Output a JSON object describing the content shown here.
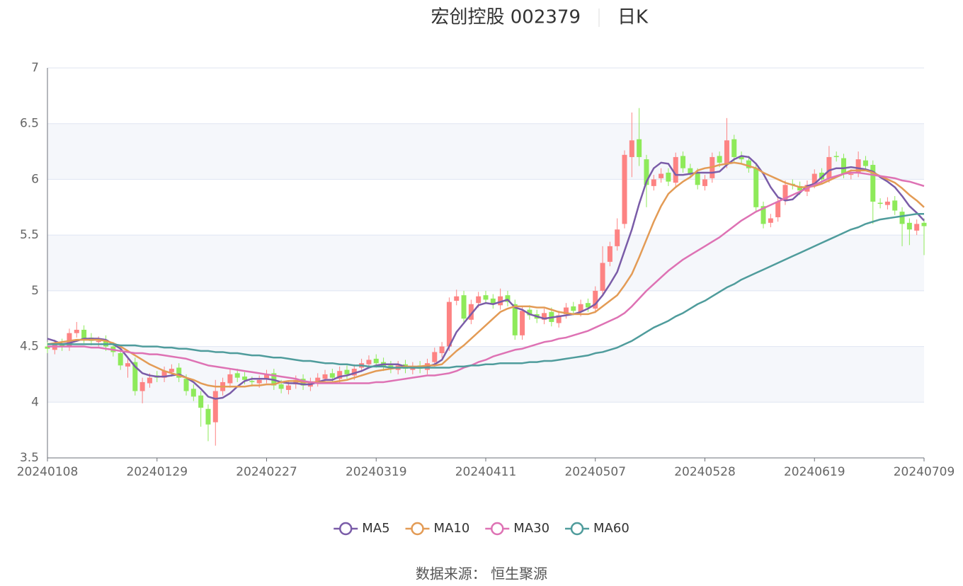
{
  "chart_data": {
    "type": "candlestick",
    "title": "宏创控股 002379",
    "subtitle": "日K",
    "source": "数据来源：  恒生聚源",
    "categories": [
      "20240108",
      null,
      null,
      null,
      null,
      null,
      null,
      null,
      null,
      null,
      null,
      null,
      null,
      null,
      null,
      "20240129",
      null,
      null,
      null,
      null,
      null,
      null,
      null,
      null,
      null,
      null,
      null,
      null,
      null,
      null,
      "20240227",
      null,
      null,
      null,
      null,
      null,
      null,
      null,
      null,
      null,
      null,
      null,
      null,
      null,
      null,
      "20240319",
      null,
      null,
      null,
      null,
      null,
      null,
      null,
      null,
      null,
      null,
      null,
      null,
      null,
      null,
      "20240411",
      null,
      null,
      null,
      null,
      null,
      null,
      null,
      null,
      null,
      null,
      null,
      null,
      null,
      null,
      "20240507",
      null,
      null,
      null,
      null,
      null,
      null,
      null,
      null,
      null,
      null,
      null,
      null,
      null,
      null,
      "20240528",
      null,
      null,
      null,
      null,
      null,
      null,
      null,
      null,
      null,
      null,
      null,
      null,
      null,
      null,
      "20240619",
      null,
      null,
      null,
      null,
      null,
      null,
      null,
      null,
      null,
      null,
      null,
      null,
      null,
      null,
      "20240709"
    ],
    "open": [
      4.5,
      4.47,
      4.53,
      4.5,
      4.62,
      4.65,
      4.58,
      4.54,
      4.56,
      4.5,
      4.44,
      4.32,
      4.36,
      4.1,
      4.17,
      4.24,
      4.22,
      4.27,
      4.31,
      4.21,
      4.12,
      4.06,
      3.94,
      3.82,
      4.1,
      4.17,
      4.26,
      4.23,
      4.19,
      4.17,
      4.21,
      4.26,
      4.16,
      4.11,
      4.16,
      4.21,
      4.14,
      4.18,
      4.21,
      4.26,
      4.21,
      4.29,
      4.24,
      4.31,
      4.34,
      4.39,
      4.36,
      4.33,
      4.29,
      4.34,
      4.29,
      4.33,
      4.29,
      4.36,
      4.44,
      4.5,
      4.91,
      4.96,
      4.74,
      4.89,
      4.96,
      4.93,
      4.87,
      4.96,
      4.88,
      4.6,
      4.83,
      4.79,
      4.74,
      4.81,
      4.71,
      4.79,
      4.86,
      4.81,
      4.89,
      4.84,
      5.0,
      5.26,
      5.4,
      5.6,
      6.2,
      6.36,
      6.18,
      5.94,
      6.01,
      6.06,
      5.97,
      6.21,
      6.1,
      6.06,
      5.94,
      6.01,
      6.21,
      6.14,
      6.36,
      6.21,
      6.17,
      6.1,
      5.76,
      5.61,
      5.66,
      5.81,
      5.96,
      5.94,
      5.89,
      5.96,
      6.06,
      6.01,
      6.21,
      6.19,
      6.04,
      6.06,
      6.17,
      6.13,
      5.79,
      5.77,
      5.81,
      5.71,
      5.61,
      5.54,
      5.61
    ],
    "close": [
      4.48,
      4.52,
      4.5,
      4.62,
      4.65,
      4.57,
      4.55,
      4.55,
      4.5,
      4.45,
      4.33,
      4.35,
      4.1,
      4.18,
      4.22,
      4.22,
      4.28,
      4.3,
      4.22,
      4.1,
      4.05,
      3.95,
      3.8,
      4.1,
      4.18,
      4.25,
      4.22,
      4.2,
      4.18,
      4.2,
      4.25,
      4.15,
      4.12,
      4.15,
      4.2,
      4.15,
      4.18,
      4.22,
      4.25,
      4.22,
      4.28,
      4.25,
      4.3,
      4.35,
      4.38,
      4.35,
      4.32,
      4.3,
      4.33,
      4.3,
      4.32,
      4.3,
      4.35,
      4.45,
      4.5,
      4.9,
      4.95,
      4.75,
      4.88,
      4.95,
      4.92,
      4.88,
      4.95,
      4.9,
      4.6,
      4.82,
      4.78,
      4.75,
      4.8,
      4.72,
      4.78,
      4.85,
      4.82,
      4.88,
      4.85,
      5.0,
      5.25,
      5.4,
      5.55,
      6.22,
      6.35,
      6.2,
      5.95,
      6.0,
      6.05,
      5.98,
      6.2,
      6.1,
      6.05,
      5.95,
      6.0,
      6.2,
      6.15,
      6.35,
      6.2,
      6.18,
      6.1,
      5.75,
      5.6,
      5.65,
      5.8,
      5.95,
      5.95,
      5.9,
      5.95,
      6.05,
      6.0,
      6.2,
      6.2,
      6.05,
      6.05,
      6.18,
      6.12,
      5.8,
      5.78,
      5.8,
      5.72,
      5.6,
      5.55,
      5.6,
      5.58
    ],
    "low": [
      4.44,
      4.43,
      4.46,
      4.46,
      4.58,
      4.53,
      4.51,
      4.5,
      4.46,
      4.41,
      4.29,
      4.22,
      4.06,
      3.99,
      4.13,
      4.18,
      4.18,
      4.23,
      4.18,
      4.06,
      4.01,
      3.78,
      3.65,
      3.61,
      4.06,
      4.13,
      4.18,
      4.16,
      4.14,
      4.13,
      4.17,
      4.11,
      4.08,
      4.07,
      4.12,
      4.11,
      4.1,
      4.14,
      4.17,
      4.18,
      4.17,
      4.21,
      4.2,
      4.27,
      4.3,
      4.31,
      4.28,
      4.26,
      4.25,
      4.26,
      4.25,
      4.26,
      4.25,
      4.32,
      4.4,
      4.46,
      4.87,
      4.71,
      4.7,
      4.85,
      4.88,
      4.84,
      4.83,
      4.86,
      4.56,
      4.56,
      4.74,
      4.71,
      4.7,
      4.68,
      4.67,
      4.75,
      4.78,
      4.77,
      4.81,
      4.8,
      4.96,
      5.22,
      5.36,
      5.56,
      6.02,
      6.12,
      5.75,
      5.9,
      5.97,
      5.94,
      5.93,
      6.06,
      6.01,
      5.91,
      5.9,
      5.97,
      6.11,
      6.1,
      6.16,
      6.14,
      6.06,
      5.71,
      5.56,
      5.57,
      5.62,
      5.77,
      5.91,
      5.86,
      5.85,
      5.92,
      5.96,
      5.97,
      6.16,
      6.01,
      6.0,
      6.02,
      6.08,
      5.6,
      5.74,
      5.73,
      5.68,
      5.4,
      5.41,
      5.5,
      5.32
    ],
    "high": [
      4.54,
      4.56,
      4.57,
      4.66,
      4.72,
      4.69,
      4.62,
      4.59,
      4.6,
      4.54,
      4.48,
      4.39,
      4.4,
      4.22,
      4.26,
      4.28,
      4.32,
      4.34,
      4.35,
      4.25,
      4.16,
      4.1,
      3.98,
      4.2,
      4.22,
      4.3,
      4.3,
      4.27,
      4.23,
      4.24,
      4.29,
      4.3,
      4.2,
      4.19,
      4.24,
      4.25,
      4.22,
      4.26,
      4.29,
      4.3,
      4.32,
      4.33,
      4.34,
      4.39,
      4.42,
      4.43,
      4.4,
      4.37,
      4.37,
      4.38,
      4.36,
      4.37,
      4.39,
      4.49,
      4.54,
      4.94,
      5.01,
      5.0,
      4.92,
      4.99,
      5.0,
      4.97,
      5.02,
      5.0,
      4.92,
      4.86,
      4.87,
      4.83,
      4.84,
      4.85,
      4.82,
      4.89,
      4.9,
      4.92,
      4.93,
      5.04,
      5.4,
      5.44,
      5.65,
      6.26,
      6.6,
      6.64,
      6.22,
      6.04,
      6.1,
      6.1,
      6.24,
      6.25,
      6.14,
      6.1,
      6.04,
      6.24,
      6.25,
      6.55,
      6.4,
      6.25,
      6.21,
      6.14,
      5.8,
      5.69,
      5.84,
      5.99,
      6.0,
      5.98,
      5.99,
      6.09,
      6.1,
      6.3,
      6.25,
      6.23,
      6.09,
      6.25,
      6.21,
      6.17,
      5.83,
      5.84,
      5.85,
      5.75,
      5.65,
      5.64,
      5.65
    ],
    "up_color": "#fd8383",
    "down_color": "#8eea5a",
    "series": [
      {
        "name": "MA5",
        "color": "#7a5ca8",
        "values": [
          4.57,
          4.55,
          4.52,
          4.53,
          4.55,
          4.57,
          4.57,
          4.57,
          4.56,
          4.52,
          4.48,
          4.4,
          4.32,
          4.26,
          4.24,
          4.23,
          4.23,
          4.24,
          4.25,
          4.22,
          4.18,
          4.12,
          4.05,
          4.03,
          4.04,
          4.08,
          4.14,
          4.19,
          4.21,
          4.21,
          4.21,
          4.2,
          4.18,
          4.17,
          4.17,
          4.16,
          4.16,
          4.18,
          4.2,
          4.2,
          4.23,
          4.24,
          4.26,
          4.28,
          4.31,
          4.33,
          4.34,
          4.34,
          4.34,
          4.32,
          4.31,
          4.31,
          4.32,
          4.34,
          4.38,
          4.5,
          4.63,
          4.71,
          4.79,
          4.87,
          4.89,
          4.88,
          4.9,
          4.92,
          4.85,
          4.83,
          4.79,
          4.77,
          4.75,
          4.76,
          4.77,
          4.78,
          4.79,
          4.81,
          4.84,
          4.88,
          4.96,
          5.06,
          5.17,
          5.36,
          5.55,
          5.78,
          5.98,
          6.1,
          6.15,
          6.14,
          6.04,
          6.04,
          6.05,
          6.06,
          6.06,
          6.06,
          6.07,
          6.13,
          6.18,
          6.21,
          6.2,
          6.14,
          6.05,
          5.93,
          5.84,
          5.81,
          5.82,
          5.88,
          5.94,
          5.96,
          6.02,
          6.08,
          6.1,
          6.1,
          6.11,
          6.1,
          6.09,
          6.07,
          6.02,
          5.98,
          5.93,
          5.85,
          5.76,
          5.7,
          5.63
        ]
      },
      {
        "name": "MA10",
        "color": "#e39b55",
        "values": [
          4.52,
          4.53,
          4.54,
          4.55,
          4.56,
          4.56,
          4.56,
          4.56,
          4.55,
          4.53,
          4.5,
          4.46,
          4.42,
          4.38,
          4.34,
          4.31,
          4.28,
          4.26,
          4.24,
          4.22,
          4.2,
          4.17,
          4.15,
          4.14,
          4.14,
          4.14,
          4.14,
          4.14,
          4.15,
          4.15,
          4.16,
          4.16,
          4.18,
          4.19,
          4.19,
          4.18,
          4.18,
          4.18,
          4.18,
          4.18,
          4.19,
          4.2,
          4.22,
          4.24,
          4.26,
          4.28,
          4.29,
          4.3,
          4.31,
          4.32,
          4.32,
          4.32,
          4.33,
          4.33,
          4.34,
          4.4,
          4.46,
          4.51,
          4.57,
          4.63,
          4.69,
          4.75,
          4.81,
          4.84,
          4.86,
          4.86,
          4.86,
          4.85,
          4.85,
          4.83,
          4.81,
          4.8,
          4.79,
          4.79,
          4.79,
          4.81,
          4.86,
          4.91,
          4.96,
          5.05,
          5.15,
          5.3,
          5.46,
          5.62,
          5.76,
          5.87,
          5.93,
          5.98,
          6.02,
          6.08,
          6.1,
          6.11,
          6.13,
          6.14,
          6.15,
          6.14,
          6.12,
          6.1,
          6.06,
          6.03,
          6.0,
          5.97,
          5.95,
          5.93,
          5.93,
          5.94,
          5.96,
          5.99,
          6.02,
          6.05,
          6.08,
          6.08,
          6.08,
          6.06,
          6.03,
          6.0,
          5.97,
          5.92,
          5.86,
          5.81,
          5.75
        ]
      },
      {
        "name": "MA30",
        "color": "#de72b4",
        "values": [
          4.5,
          4.5,
          4.5,
          4.5,
          4.5,
          4.5,
          4.49,
          4.49,
          4.48,
          4.47,
          4.46,
          4.45,
          4.44,
          4.44,
          4.43,
          4.43,
          4.42,
          4.41,
          4.4,
          4.39,
          4.37,
          4.35,
          4.33,
          4.32,
          4.31,
          4.3,
          4.29,
          4.28,
          4.27,
          4.26,
          4.25,
          4.24,
          4.23,
          4.22,
          4.21,
          4.19,
          4.18,
          4.17,
          4.17,
          4.17,
          4.17,
          4.17,
          4.17,
          4.17,
          4.17,
          4.18,
          4.18,
          4.19,
          4.2,
          4.21,
          4.22,
          4.23,
          4.24,
          4.24,
          4.25,
          4.26,
          4.28,
          4.31,
          4.33,
          4.36,
          4.38,
          4.41,
          4.43,
          4.45,
          4.47,
          4.48,
          4.5,
          4.52,
          4.54,
          4.55,
          4.57,
          4.58,
          4.6,
          4.62,
          4.64,
          4.67,
          4.7,
          4.73,
          4.76,
          4.8,
          4.86,
          4.93,
          5.0,
          5.06,
          5.12,
          5.18,
          5.23,
          5.28,
          5.32,
          5.36,
          5.4,
          5.44,
          5.48,
          5.53,
          5.58,
          5.63,
          5.67,
          5.71,
          5.74,
          5.77,
          5.8,
          5.83,
          5.86,
          5.89,
          5.92,
          5.95,
          5.98,
          6.01,
          6.03,
          6.05,
          6.06,
          6.06,
          6.05,
          6.04,
          6.03,
          6.02,
          6.01,
          5.99,
          5.98,
          5.96,
          5.94
        ]
      },
      {
        "name": "MA60",
        "color": "#4f9c9c",
        "values": [
          4.52,
          4.52,
          4.52,
          4.52,
          4.52,
          4.52,
          4.52,
          4.52,
          4.52,
          4.52,
          4.51,
          4.51,
          4.51,
          4.5,
          4.5,
          4.5,
          4.49,
          4.49,
          4.48,
          4.48,
          4.47,
          4.46,
          4.46,
          4.45,
          4.45,
          4.44,
          4.44,
          4.43,
          4.42,
          4.42,
          4.41,
          4.4,
          4.4,
          4.39,
          4.38,
          4.37,
          4.37,
          4.36,
          4.35,
          4.35,
          4.34,
          4.34,
          4.33,
          4.33,
          4.32,
          4.32,
          4.32,
          4.31,
          4.31,
          4.31,
          4.31,
          4.31,
          4.31,
          4.31,
          4.31,
          4.31,
          4.32,
          4.32,
          4.33,
          4.33,
          4.34,
          4.34,
          4.35,
          4.35,
          4.35,
          4.35,
          4.36,
          4.36,
          4.37,
          4.37,
          4.38,
          4.39,
          4.4,
          4.41,
          4.42,
          4.44,
          4.45,
          4.47,
          4.49,
          4.52,
          4.55,
          4.59,
          4.63,
          4.67,
          4.7,
          4.73,
          4.77,
          4.8,
          4.84,
          4.88,
          4.91,
          4.95,
          4.99,
          5.03,
          5.06,
          5.1,
          5.13,
          5.16,
          5.19,
          5.22,
          5.25,
          5.28,
          5.31,
          5.34,
          5.37,
          5.4,
          5.43,
          5.46,
          5.49,
          5.52,
          5.55,
          5.57,
          5.6,
          5.62,
          5.64,
          5.65,
          5.66,
          5.67,
          5.68,
          5.69,
          5.69
        ]
      }
    ],
    "ylim": [
      3.5,
      7
    ],
    "yticks": [
      3.5,
      4,
      4.5,
      5,
      5.5,
      6,
      6.5,
      7
    ],
    "grid": true,
    "split_area": true,
    "legend": "bottom"
  }
}
